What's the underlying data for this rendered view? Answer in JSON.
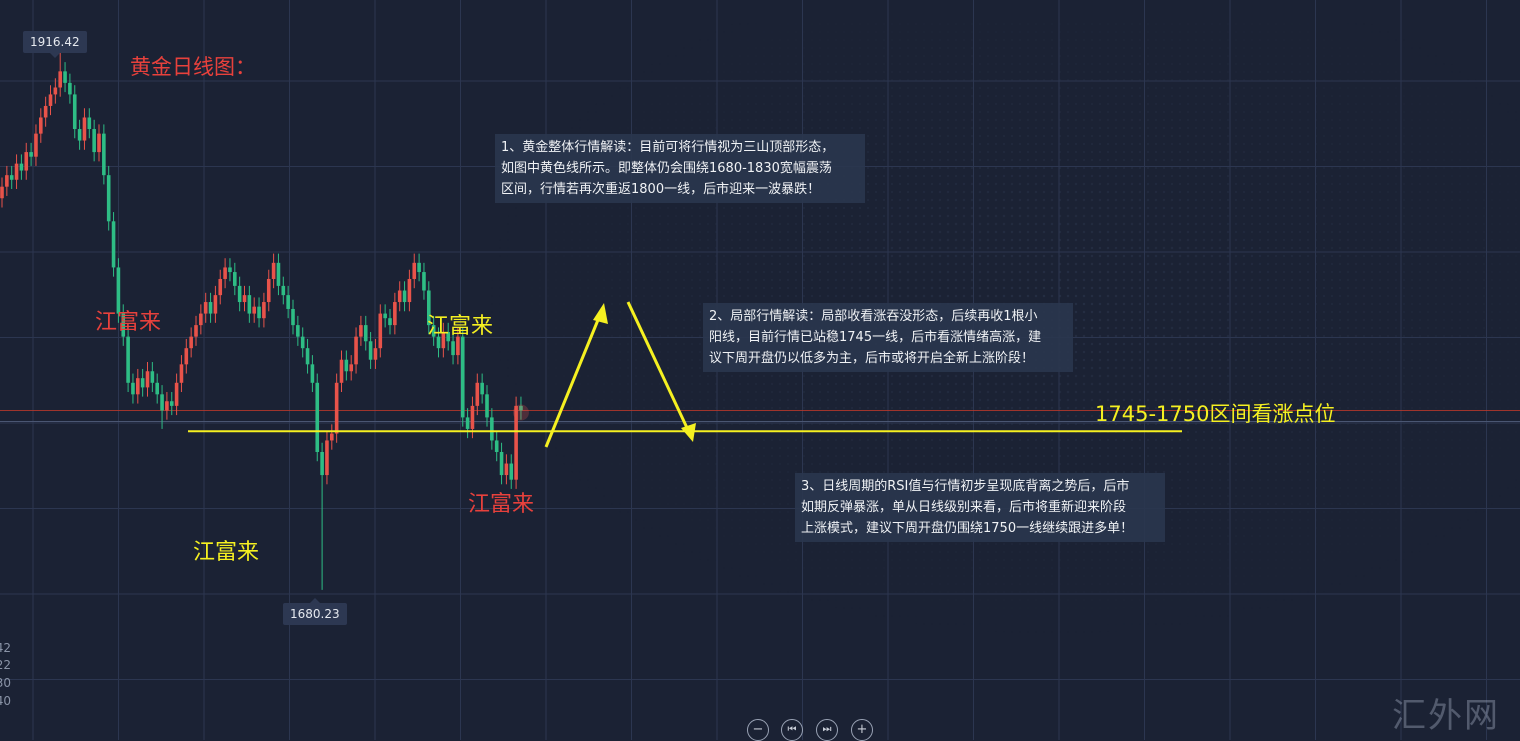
{
  "title": "黄金日线图：",
  "zone_label": "1745-1750区间看涨点位",
  "watermark": "汇外网",
  "brand_marks": [
    "江富来",
    "江富来",
    "江富来",
    "江富来"
  ],
  "annotations": [
    "1、黄金整体行情解读：目前可将行情视为三山顶部形态，\n如图中黄色线所示。即整体仍会围绕1680-1830宽幅震荡\n区间，行情若再次重返1800一线，后市迎来一波暴跌！",
    "2、局部行情解读：局部收看涨吞没形态，后续再收1根小\n阳线，目前行情已站稳1745一线，后市看涨情绪高涨，建\n议下周开盘仍以低多为主，后市或将开启全新上涨阶段！",
    "3、日线周期的RSI值与行情初步呈现底背离之势后，后市\n如期反弹暴涨，单从日线级别来看，后市将重新迎来阶段\n上涨模式，建议下周开盘仍围绕1750一线继续跟进多单！"
  ],
  "axis_partial_labels": [
    "42",
    "22",
    "30",
    "40"
  ],
  "controls": [
    {
      "name": "zoom-out",
      "icon": "minus-icon",
      "glyph": "−"
    },
    {
      "name": "scroll-left",
      "icon": "step-back-icon",
      "glyph": "⏮"
    },
    {
      "name": "scroll-right",
      "icon": "step-forward-icon",
      "glyph": "⏭"
    },
    {
      "name": "zoom-in",
      "icon": "plus-icon",
      "glyph": "+"
    }
  ],
  "colors": {
    "up": "#e8534a",
    "down": "#2ebd85",
    "support_line": "#f5f021",
    "price_line": "#c0392b",
    "background": "#1b2234"
  },
  "chart_data": {
    "type": "candlestick",
    "title": "黄金日线图：",
    "ylim": [
      1680.23,
      1916.42
    ],
    "grid": true,
    "high_label": "1916.42",
    "low_label": "1680.23",
    "current_price": 1758,
    "support_level": 1749,
    "ohlc": [
      [
        1850,
        1859,
        1846,
        1855
      ],
      [
        1855,
        1864,
        1851,
        1860
      ],
      [
        1860,
        1864,
        1854,
        1858
      ],
      [
        1858,
        1869,
        1854,
        1865
      ],
      [
        1865,
        1869,
        1858,
        1862
      ],
      [
        1862,
        1874,
        1858,
        1870
      ],
      [
        1870,
        1874,
        1864,
        1868
      ],
      [
        1868,
        1882,
        1864,
        1878
      ],
      [
        1878,
        1889,
        1874,
        1885
      ],
      [
        1885,
        1894,
        1881,
        1890
      ],
      [
        1890,
        1899,
        1886,
        1895
      ],
      [
        1895,
        1902,
        1891,
        1898
      ],
      [
        1898,
        1916.42,
        1894,
        1905
      ],
      [
        1905,
        1909,
        1896,
        1900
      ],
      [
        1900,
        1904,
        1891,
        1895
      ],
      [
        1895,
        1899,
        1876,
        1880
      ],
      [
        1880,
        1884,
        1871,
        1875
      ],
      [
        1875,
        1889,
        1871,
        1885
      ],
      [
        1885,
        1889,
        1876,
        1880
      ],
      [
        1880,
        1884,
        1866,
        1870
      ],
      [
        1870,
        1882,
        1866,
        1878
      ],
      [
        1878,
        1882,
        1856,
        1860
      ],
      [
        1860,
        1864,
        1836,
        1840
      ],
      [
        1840,
        1844,
        1816,
        1820
      ],
      [
        1820,
        1824,
        1796,
        1800
      ],
      [
        1800,
        1804,
        1786,
        1790
      ],
      [
        1790,
        1794,
        1766,
        1770
      ],
      [
        1770,
        1774,
        1761,
        1765
      ],
      [
        1765,
        1776,
        1761,
        1772
      ],
      [
        1772,
        1776,
        1764,
        1768
      ],
      [
        1768,
        1779,
        1764,
        1775
      ],
      [
        1775,
        1779,
        1766,
        1770
      ],
      [
        1770,
        1774,
        1761,
        1765
      ],
      [
        1765,
        1769,
        1750,
        1758
      ],
      [
        1758,
        1766,
        1754,
        1762
      ],
      [
        1762,
        1766,
        1756,
        1760
      ],
      [
        1760,
        1774,
        1756,
        1770
      ],
      [
        1770,
        1782,
        1766,
        1778
      ],
      [
        1778,
        1789,
        1774,
        1785
      ],
      [
        1785,
        1794,
        1781,
        1790
      ],
      [
        1790,
        1799,
        1786,
        1795
      ],
      [
        1795,
        1804,
        1791,
        1800
      ],
      [
        1800,
        1809,
        1796,
        1805
      ],
      [
        1805,
        1809,
        1796,
        1800
      ],
      [
        1800,
        1812,
        1796,
        1808
      ],
      [
        1808,
        1819,
        1804,
        1815
      ],
      [
        1815,
        1824,
        1811,
        1820
      ],
      [
        1820,
        1824,
        1814,
        1818
      ],
      [
        1818,
        1822,
        1808,
        1812
      ],
      [
        1812,
        1816,
        1801,
        1805
      ],
      [
        1805,
        1812,
        1801,
        1808
      ],
      [
        1808,
        1812,
        1796,
        1800
      ],
      [
        1800,
        1807,
        1796,
        1803
      ],
      [
        1803,
        1807,
        1794,
        1798
      ],
      [
        1798,
        1809,
        1794,
        1805
      ],
      [
        1805,
        1819,
        1801,
        1815
      ],
      [
        1815,
        1826,
        1811,
        1822
      ],
      [
        1822,
        1826,
        1808,
        1812
      ],
      [
        1812,
        1816,
        1804,
        1808
      ],
      [
        1808,
        1812,
        1798,
        1802
      ],
      [
        1802,
        1806,
        1791,
        1795
      ],
      [
        1795,
        1799,
        1786,
        1790
      ],
      [
        1790,
        1794,
        1781,
        1785
      ],
      [
        1785,
        1789,
        1774,
        1778
      ],
      [
        1778,
        1782,
        1766,
        1770
      ],
      [
        1770,
        1774,
        1736,
        1740
      ],
      [
        1740,
        1744,
        1680.23,
        1730
      ],
      [
        1730,
        1749,
        1726,
        1745
      ],
      [
        1745,
        1752,
        1741,
        1748
      ],
      [
        1748,
        1774,
        1744,
        1770
      ],
      [
        1770,
        1784,
        1766,
        1780
      ],
      [
        1780,
        1784,
        1771,
        1775
      ],
      [
        1775,
        1782,
        1771,
        1778
      ],
      [
        1778,
        1794,
        1774,
        1790
      ],
      [
        1790,
        1799,
        1786,
        1795
      ],
      [
        1795,
        1799,
        1784,
        1788
      ],
      [
        1788,
        1792,
        1776,
        1780
      ],
      [
        1780,
        1789,
        1776,
        1785
      ],
      [
        1785,
        1804,
        1781,
        1800
      ],
      [
        1800,
        1804,
        1794,
        1798
      ],
      [
        1798,
        1802,
        1791,
        1795
      ],
      [
        1795,
        1809,
        1791,
        1805
      ],
      [
        1805,
        1814,
        1801,
        1810
      ],
      [
        1810,
        1814,
        1801,
        1805
      ],
      [
        1805,
        1819,
        1801,
        1815
      ],
      [
        1815,
        1826,
        1811,
        1822
      ],
      [
        1822,
        1826,
        1814,
        1818
      ],
      [
        1818,
        1822,
        1806,
        1810
      ],
      [
        1810,
        1814,
        1791,
        1795
      ],
      [
        1795,
        1799,
        1786,
        1790
      ],
      [
        1790,
        1794,
        1781,
        1785
      ],
      [
        1785,
        1796,
        1781,
        1792
      ],
      [
        1792,
        1796,
        1784,
        1788
      ],
      [
        1788,
        1792,
        1778,
        1782
      ],
      [
        1782,
        1794,
        1778,
        1790
      ],
      [
        1790,
        1794,
        1751,
        1755
      ],
      [
        1755,
        1759,
        1746,
        1750
      ],
      [
        1750,
        1764,
        1746,
        1760
      ],
      [
        1760,
        1774,
        1756,
        1770
      ],
      [
        1770,
        1774,
        1761,
        1765
      ],
      [
        1765,
        1769,
        1751,
        1755
      ],
      [
        1755,
        1759,
        1741,
        1745
      ],
      [
        1745,
        1749,
        1736,
        1740
      ],
      [
        1740,
        1744,
        1726,
        1730
      ],
      [
        1730,
        1739,
        1726,
        1735
      ],
      [
        1735,
        1739,
        1724,
        1728
      ],
      [
        1728,
        1764,
        1724,
        1760
      ],
      [
        1760,
        1764,
        1754,
        1758
      ]
    ]
  }
}
